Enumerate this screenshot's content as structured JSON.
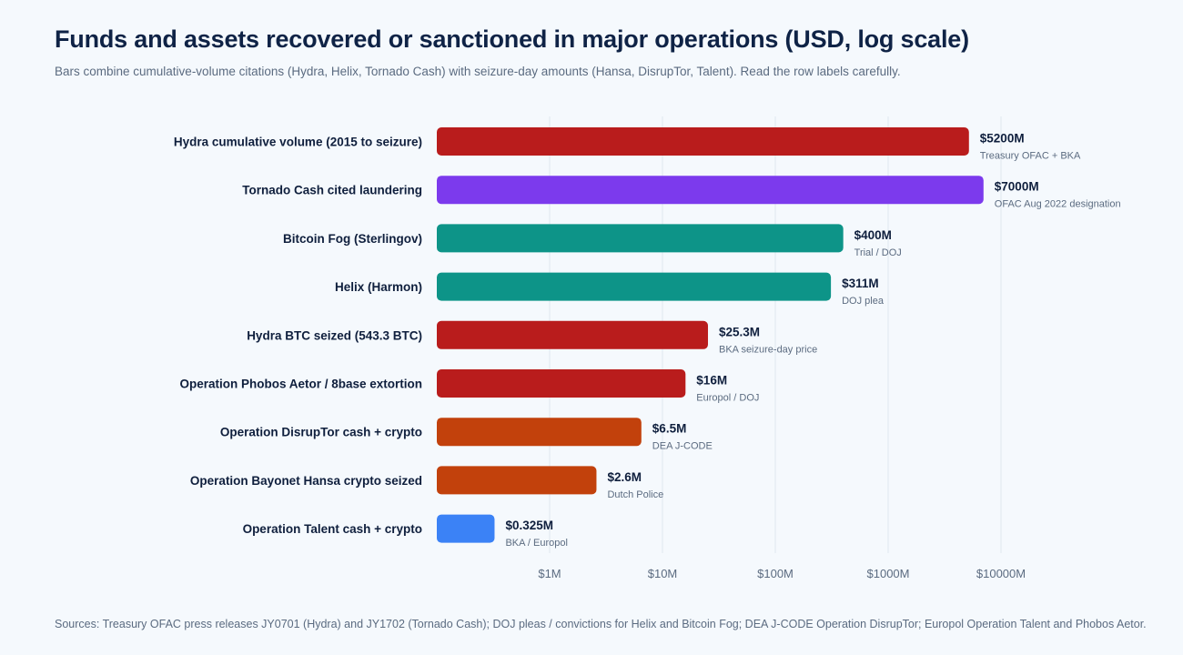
{
  "chart_data": {
    "type": "bar",
    "orientation": "horizontal",
    "scale": "log",
    "title": "Funds and assets recovered or sanctioned in major operations (USD, log scale)",
    "subtitle": "Bars combine cumulative-volume citations (Hydra, Helix, Tornado Cash) with seizure-day amounts (Hansa, DisrupTor, Talent). Read the row labels carefully.",
    "xlim_musd": [
      0.1,
      20000
    ],
    "xticks": [
      {
        "value": 1,
        "label": "$1M"
      },
      {
        "value": 10,
        "label": "$10M"
      },
      {
        "value": 100,
        "label": "$100M"
      },
      {
        "value": 1000,
        "label": "$1000M"
      },
      {
        "value": 10000,
        "label": "$10000M"
      }
    ],
    "bars": [
      {
        "label": "Hydra cumulative volume (2015 to seizure)",
        "value": 5200,
        "value_label": "$5200M",
        "source": "Treasury OFAC + BKA",
        "color": "#b91c1c"
      },
      {
        "label": "Tornado Cash cited laundering",
        "value": 7000,
        "value_label": "$7000M",
        "source": "OFAC Aug 2022 designation",
        "color": "#7c3aed"
      },
      {
        "label": "Bitcoin Fog (Sterlingov)",
        "value": 400,
        "value_label": "$400M",
        "source": "Trial / DOJ",
        "color": "#0d9488"
      },
      {
        "label": "Helix (Harmon)",
        "value": 311,
        "value_label": "$311M",
        "source": "DOJ plea",
        "color": "#0d9488"
      },
      {
        "label": "Hydra BTC seized (543.3 BTC)",
        "value": 25.3,
        "value_label": "$25.3M",
        "source": "BKA seizure-day price",
        "color": "#b91c1c"
      },
      {
        "label": "Operation Phobos Aetor / 8base extortion",
        "value": 16,
        "value_label": "$16M",
        "source": "Europol / DOJ",
        "color": "#b91c1c"
      },
      {
        "label": "Operation DisrupTor cash + crypto",
        "value": 6.5,
        "value_label": "$6.5M",
        "source": "DEA J-CODE",
        "color": "#c2410c"
      },
      {
        "label": "Operation Bayonet Hansa crypto seized",
        "value": 2.6,
        "value_label": "$2.6M",
        "source": "Dutch Police",
        "color": "#c2410c"
      },
      {
        "label": "Operation Talent cash + crypto",
        "value": 0.325,
        "value_label": "$0.325M",
        "source": "BKA / Europol",
        "color": "#3b82f6"
      }
    ]
  },
  "footer": "Sources: Treasury OFAC press releases JY0701 (Hydra) and JY1702 (Tornado Cash); DOJ pleas / convictions for Helix and Bitcoin Fog; DEA J-CODE Operation DisrupTor; Europol Operation Talent and Phobos Aetor."
}
